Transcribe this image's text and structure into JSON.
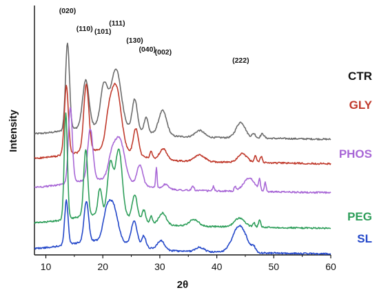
{
  "chart_data": {
    "type": "line",
    "title": "",
    "xlabel": "2θ",
    "ylabel": "Intensity",
    "xlim": [
      8,
      60
    ],
    "xticks": [
      "10",
      "20",
      "30",
      "40",
      "50",
      "60"
    ],
    "y_ticks_shown": false,
    "grid": false,
    "legend": "series names printed to the right of each trace",
    "peak_labels": [
      {
        "text": "(020)",
        "x": 13.8
      },
      {
        "text": "(110)",
        "x": 16.8
      },
      {
        "text": "(101)",
        "x": 20.0
      },
      {
        "text": "(111)",
        "x": 22.5
      },
      {
        "text": "(130)",
        "x": 25.6
      },
      {
        "text": "(040)",
        "x": 27.8
      },
      {
        "text": "(002)",
        "x": 30.6
      },
      {
        "text": "(222)",
        "x": 44.2
      }
    ],
    "series": [
      {
        "name": "CTR",
        "color": "#6b6b6b",
        "baseline": 5.4,
        "peaks": [
          [
            13.8,
            3.9,
            0.35
          ],
          [
            17.0,
            2.1,
            0.55
          ],
          [
            20.2,
            1.8,
            0.6
          ],
          [
            22.3,
            2.6,
            0.9
          ],
          [
            25.6,
            1.4,
            0.45
          ],
          [
            27.6,
            0.7,
            0.35
          ],
          [
            30.5,
            1.1,
            0.7
          ],
          [
            37.0,
            0.3,
            0.8
          ],
          [
            44.2,
            0.7,
            0.8
          ],
          [
            46.5,
            0.2,
            0.3
          ],
          [
            48.0,
            0.2,
            0.3
          ]
        ]
      },
      {
        "name": "GLY",
        "color": "#c0392b",
        "baseline": 4.3,
        "peaks": [
          [
            13.6,
            3.1,
            0.35
          ],
          [
            17.1,
            3.0,
            0.45
          ],
          [
            21.0,
            1.0,
            0.6
          ],
          [
            22.3,
            2.9,
            0.9
          ],
          [
            25.8,
            1.2,
            0.45
          ],
          [
            28.5,
            0.3,
            0.2
          ],
          [
            30.6,
            0.5,
            0.6
          ],
          [
            37.0,
            0.3,
            0.9
          ],
          [
            44.5,
            0.4,
            0.8
          ],
          [
            46.8,
            0.3,
            0.2
          ],
          [
            47.8,
            0.3,
            0.2
          ]
        ]
      },
      {
        "name": "PHOS",
        "color": "#a867d6",
        "baseline": 3.0,
        "peaks": [
          [
            14.3,
            3.4,
            0.35
          ],
          [
            17.8,
            2.3,
            0.45
          ],
          [
            21.5,
            0.8,
            0.6
          ],
          [
            22.9,
            1.9,
            0.9
          ],
          [
            26.5,
            0.9,
            0.5
          ],
          [
            29.4,
            0.9,
            0.12
          ],
          [
            31.0,
            0.2,
            0.5
          ],
          [
            35.8,
            0.2,
            0.2
          ],
          [
            39.4,
            0.2,
            0.15
          ],
          [
            43.2,
            0.2,
            0.15
          ],
          [
            45.7,
            0.6,
            1.0
          ],
          [
            47.5,
            0.5,
            0.15
          ],
          [
            48.5,
            0.4,
            0.15
          ]
        ]
      },
      {
        "name": "PEG",
        "color": "#2e9e5a",
        "baseline": 1.4,
        "peaks": [
          [
            13.5,
            4.8,
            0.28
          ],
          [
            17.0,
            3.0,
            0.35
          ],
          [
            19.5,
            1.2,
            0.35
          ],
          [
            21.3,
            2.3,
            0.5
          ],
          [
            22.8,
            3.0,
            0.6
          ],
          [
            25.6,
            1.1,
            0.45
          ],
          [
            27.2,
            0.5,
            0.3
          ],
          [
            28.5,
            0.3,
            0.2
          ],
          [
            30.5,
            0.5,
            0.6
          ],
          [
            36.0,
            0.3,
            0.8
          ],
          [
            44.0,
            0.4,
            0.9
          ],
          [
            46.5,
            0.2,
            0.2
          ],
          [
            47.5,
            0.3,
            0.2
          ]
        ]
      },
      {
        "name": "SL",
        "color": "#2347c9",
        "baseline": 0.25,
        "peaks": [
          [
            13.6,
            2.0,
            0.3
          ],
          [
            17.1,
            1.8,
            0.4
          ],
          [
            20.6,
            1.0,
            0.6
          ],
          [
            21.8,
            1.6,
            0.8
          ],
          [
            25.5,
            1.1,
            0.5
          ],
          [
            27.2,
            0.5,
            0.35
          ],
          [
            30.2,
            0.4,
            0.6
          ],
          [
            37.0,
            0.2,
            0.8
          ],
          [
            44.0,
            1.2,
            1.2
          ],
          [
            46.5,
            0.2,
            0.3
          ]
        ]
      }
    ]
  }
}
